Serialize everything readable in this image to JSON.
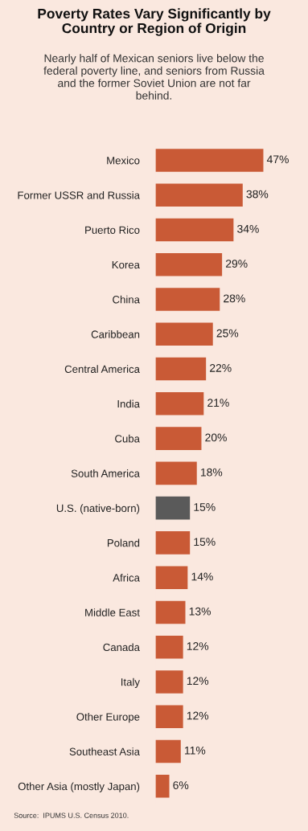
{
  "chart_data": {
    "type": "bar",
    "orientation": "horizontal",
    "title": "Poverty Rates Vary Significantly by\nCountry or Region of Origin",
    "subtitle": "Nearly half of Mexican seniors live below the\nfederal poverty line, and seniors from Russia\nand the former Soviet Union are not far\nbehind.",
    "categories": [
      "Mexico",
      "Former USSR and Russia",
      "Puerto Rico",
      "Korea",
      "China",
      "Caribbean",
      "Central America",
      "India",
      "Cuba",
      "South America",
      "U.S. (native-born)",
      "Poland",
      "Africa",
      "Middle East",
      "Canada",
      "Italy",
      "Other Europe",
      "Southeast Asia",
      "Other Asia (mostly Japan)"
    ],
    "values": [
      47,
      38,
      34,
      29,
      28,
      25,
      22,
      21,
      20,
      18,
      15,
      15,
      14,
      13,
      12,
      12,
      12,
      11,
      6
    ],
    "colors": [
      "#c95a36",
      "#c95a36",
      "#c95a36",
      "#c95a36",
      "#c95a36",
      "#c95a36",
      "#c95a36",
      "#c95a36",
      "#c95a36",
      "#c95a36",
      "#5a5a5a",
      "#c95a36",
      "#c95a36",
      "#c95a36",
      "#c95a36",
      "#c95a36",
      "#c95a36",
      "#c95a36",
      "#c95a36"
    ],
    "value_labels": [
      "47%",
      "38%",
      "34%",
      "29%",
      "28%",
      "25%",
      "22%",
      "21%",
      "20%",
      "18%",
      "15%",
      "15%",
      "14%",
      "13%",
      "12%",
      "12%",
      "12%",
      "11%",
      "6%"
    ],
    "annotations": [
      "Source:  IPUMS U.S. Census 2010."
    ]
  }
}
